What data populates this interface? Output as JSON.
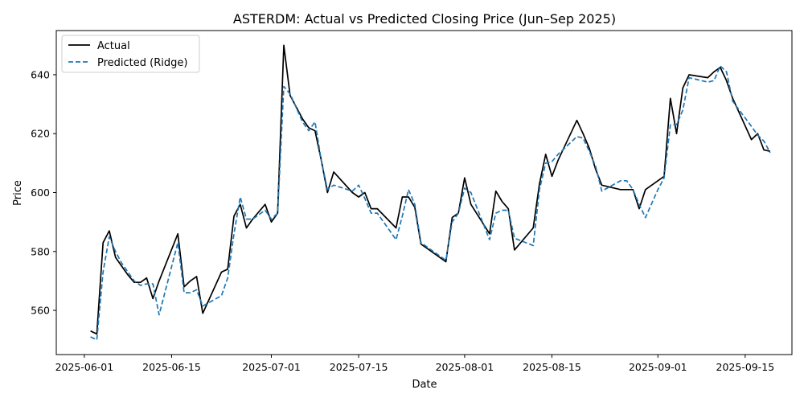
{
  "chart_data": {
    "type": "line",
    "title": "ASTERDM: Actual vs Predicted Closing Price (Jun–Sep 2025)",
    "xlabel": "Date",
    "ylabel": "Price",
    "ylim": [
      545,
      655
    ],
    "xlim_days": [
      -4.5,
      113.5
    ],
    "x_origin": "2025-06-01",
    "x_ticks": [
      {
        "day": 0,
        "label": "2025-06-01"
      },
      {
        "day": 14,
        "label": "2025-06-15"
      },
      {
        "day": 30,
        "label": "2025-07-01"
      },
      {
        "day": 44,
        "label": "2025-07-15"
      },
      {
        "day": 61,
        "label": "2025-08-01"
      },
      {
        "day": 75,
        "label": "2025-08-15"
      },
      {
        "day": 92,
        "label": "2025-09-01"
      },
      {
        "day": 106,
        "label": "2025-09-15"
      }
    ],
    "y_ticks": [
      560,
      580,
      600,
      620,
      640
    ],
    "legend": {
      "position": "top-left"
    },
    "series": [
      {
        "name": "Actual",
        "color": "#000000",
        "style": "solid",
        "points": [
          [
            1,
            553
          ],
          [
            2,
            552
          ],
          [
            3,
            583
          ],
          [
            4,
            587
          ],
          [
            5,
            578
          ],
          [
            6,
            575
          ],
          [
            7,
            572
          ],
          [
            8,
            569.5
          ],
          [
            9,
            569.5
          ],
          [
            10,
            571
          ],
          [
            11,
            564
          ],
          [
            12,
            570
          ],
          [
            15,
            586
          ],
          [
            16,
            568
          ],
          [
            17,
            570
          ],
          [
            18,
            571.5
          ],
          [
            19,
            559
          ],
          [
            22,
            573
          ],
          [
            23,
            574
          ],
          [
            24,
            592
          ],
          [
            25,
            596
          ],
          [
            26,
            588
          ],
          [
            27,
            591
          ],
          [
            29,
            596
          ],
          [
            30,
            590
          ],
          [
            31,
            593
          ],
          [
            32,
            650
          ],
          [
            33,
            633
          ],
          [
            35,
            625
          ],
          [
            36,
            622
          ],
          [
            37,
            621
          ],
          [
            38,
            611
          ],
          [
            39,
            600
          ],
          [
            40,
            607
          ],
          [
            43,
            600
          ],
          [
            44,
            598.5
          ],
          [
            45,
            600
          ],
          [
            46,
            594.5
          ],
          [
            47,
            594.5
          ],
          [
            50,
            588
          ],
          [
            51,
            598.5
          ],
          [
            52,
            598.5
          ],
          [
            53,
            595
          ],
          [
            54,
            582.5
          ],
          [
            58,
            576.5
          ],
          [
            59,
            591.5
          ],
          [
            60,
            593
          ],
          [
            61,
            605
          ],
          [
            62,
            596
          ],
          [
            65,
            586
          ],
          [
            66,
            600.5
          ],
          [
            67,
            597
          ],
          [
            68,
            594.5
          ],
          [
            69,
            580.5
          ],
          [
            72,
            588
          ],
          [
            73,
            603
          ],
          [
            74,
            613
          ],
          [
            75,
            605.5
          ],
          [
            76,
            611
          ],
          [
            79,
            624.5
          ],
          [
            80,
            620
          ],
          [
            81,
            615
          ],
          [
            82,
            608
          ],
          [
            83,
            602.5
          ],
          [
            86,
            601
          ],
          [
            87,
            601
          ],
          [
            88,
            601
          ],
          [
            89,
            594.5
          ],
          [
            90,
            601
          ],
          [
            92,
            604
          ],
          [
            93,
            605.5
          ],
          [
            94,
            632
          ],
          [
            95,
            620
          ],
          [
            96,
            635.5
          ],
          [
            97,
            640
          ],
          [
            100,
            639
          ],
          [
            101,
            641
          ],
          [
            102,
            642.5
          ],
          [
            103,
            638
          ],
          [
            104,
            632
          ],
          [
            107,
            618
          ],
          [
            108,
            620
          ],
          [
            109,
            614.5
          ],
          [
            110,
            614
          ]
        ]
      },
      {
        "name": "Predicted (Ridge)",
        "color": "#1f77b4",
        "style": "dashed",
        "points": [
          [
            1,
            551
          ],
          [
            2,
            550
          ],
          [
            3,
            573
          ],
          [
            4,
            585
          ],
          [
            5,
            580
          ],
          [
            6,
            576
          ],
          [
            7,
            573
          ],
          [
            8,
            570
          ],
          [
            9,
            568.5
          ],
          [
            10,
            569
          ],
          [
            11,
            569
          ],
          [
            12,
            558.5
          ],
          [
            15,
            583
          ],
          [
            16,
            566
          ],
          [
            17,
            566
          ],
          [
            18,
            567
          ],
          [
            19,
            561.5
          ],
          [
            22,
            565
          ],
          [
            23,
            571
          ],
          [
            24,
            586
          ],
          [
            25,
            598.5
          ],
          [
            26,
            591
          ],
          [
            27,
            591
          ],
          [
            29,
            594
          ],
          [
            30,
            591
          ],
          [
            31,
            593
          ],
          [
            32,
            636
          ],
          [
            33,
            633.5
          ],
          [
            35,
            624
          ],
          [
            36,
            621
          ],
          [
            37,
            624
          ],
          [
            38,
            611
          ],
          [
            39,
            601
          ],
          [
            40,
            602.5
          ],
          [
            43,
            600.5
          ],
          [
            44,
            602.5
          ],
          [
            45,
            598
          ],
          [
            46,
            593
          ],
          [
            47,
            593
          ],
          [
            50,
            584
          ],
          [
            51,
            592
          ],
          [
            52,
            601
          ],
          [
            53,
            596
          ],
          [
            54,
            583
          ],
          [
            58,
            577
          ],
          [
            59,
            590
          ],
          [
            60,
            593
          ],
          [
            61,
            601.5
          ],
          [
            62,
            600
          ],
          [
            65,
            584
          ],
          [
            66,
            593
          ],
          [
            67,
            594
          ],
          [
            68,
            594
          ],
          [
            69,
            584.5
          ],
          [
            72,
            582
          ],
          [
            73,
            601
          ],
          [
            74,
            610
          ],
          [
            75,
            610.5
          ],
          [
            76,
            613
          ],
          [
            79,
            619
          ],
          [
            80,
            618.5
          ],
          [
            81,
            614
          ],
          [
            82,
            609
          ],
          [
            83,
            600.5
          ],
          [
            86,
            604
          ],
          [
            87,
            604
          ],
          [
            88,
            601
          ],
          [
            89,
            596
          ],
          [
            90,
            591.5
          ],
          [
            92,
            601
          ],
          [
            93,
            605
          ],
          [
            94,
            623
          ],
          [
            95,
            623
          ],
          [
            96,
            628
          ],
          [
            97,
            639
          ],
          [
            100,
            637.5
          ],
          [
            101,
            638
          ],
          [
            102,
            643
          ],
          [
            103,
            641
          ],
          [
            104,
            631
          ],
          [
            107,
            622.5
          ],
          [
            108,
            619.5
          ],
          [
            109,
            617.5
          ],
          [
            110,
            613.5
          ]
        ]
      }
    ]
  }
}
